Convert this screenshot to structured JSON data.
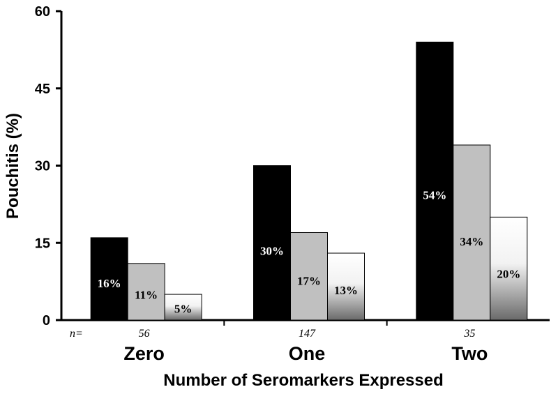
{
  "chart_data": {
    "type": "bar",
    "ylabel": "Pouchitis (%)",
    "xlabel": "Number of Seromarkers Expressed",
    "ylim": [
      0,
      60
    ],
    "yticks": [
      "0",
      "15",
      "30",
      "45",
      "60"
    ],
    "categories": [
      "Zero",
      "One",
      "Two"
    ],
    "n_prefix": "n=",
    "n_values": [
      "56",
      "147",
      "35"
    ],
    "series": [
      {
        "values": [
          16,
          30,
          54
        ],
        "labels": [
          "16%",
          "30%",
          "54%"
        ],
        "color": "#000000",
        "label_color": "#ffffff"
      },
      {
        "values": [
          11,
          17,
          34
        ],
        "labels": [
          "11%",
          "17%",
          "34%"
        ],
        "color": "#c0c0c0",
        "label_color": "#000000"
      },
      {
        "values": [
          5,
          13,
          20
        ],
        "labels": [
          "5%",
          "13%",
          "20%"
        ],
        "color": "gradient-white-to-gray",
        "label_color": "#000000"
      }
    ],
    "grid": false,
    "legend": "none"
  }
}
